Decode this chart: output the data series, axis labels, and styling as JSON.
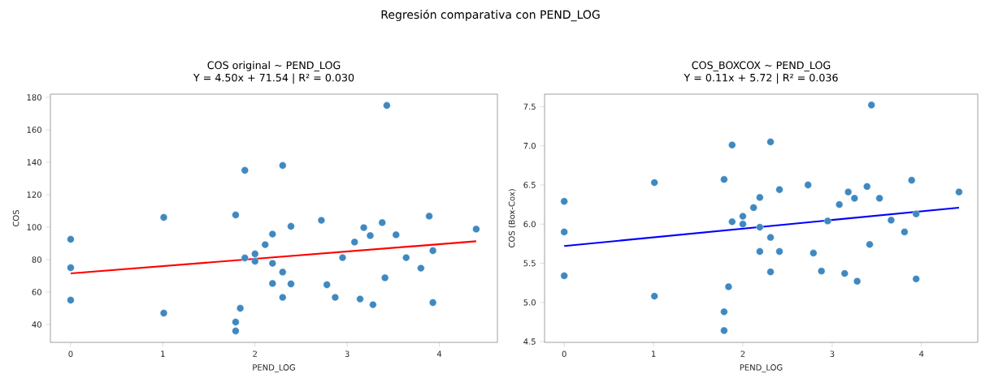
{
  "chart_data": [
    {
      "type": "scatter",
      "title": "COS original ~ PEND_LOG",
      "subtitle": "Y = 4.50x + 71.54 | R² = 0.030",
      "xlabel": "PEND_LOG",
      "ylabel": "COS",
      "annotations": [
        "Regresión comparativa con PEND_LOG"
      ],
      "xlim": [
        -0.22,
        4.63
      ],
      "ylim": [
        29,
        182
      ],
      "xticks": [
        0,
        1,
        2,
        3,
        4
      ],
      "yticks": [
        40,
        60,
        80,
        100,
        120,
        140,
        160,
        180
      ],
      "marker": "circle",
      "series": [
        {
          "color": "#3f88c0",
          "x": [
            0,
            0,
            0,
            1.01,
            1.01,
            1.79,
            1.79,
            1.79,
            1.84,
            1.89,
            1.89,
            2.0,
            2.0,
            3.43,
            2.3,
            2.72,
            2.39,
            2.19,
            2.11,
            2.19,
            2.3,
            2.19,
            2.39,
            2.3,
            2.78,
            2.87,
            2.95,
            3.08,
            3.18,
            3.25,
            3.38,
            3.53,
            3.14,
            3.28,
            3.41,
            3.64,
            3.8,
            3.89,
            3.93,
            3.93,
            4.4
          ],
          "values": [
            92.5,
            75,
            55,
            106,
            47,
            107.5,
            41.5,
            36,
            50,
            135,
            81,
            83.5,
            79,
            175,
            138,
            104.2,
            100.5,
            95.7,
            89.2,
            77.7,
            72.3,
            65.3,
            65,
            56.7,
            64.5,
            56.7,
            81.2,
            90.8,
            99.7,
            94.8,
            102.8,
            95.3,
            55.7,
            52.2,
            68.8,
            81.2,
            74.7,
            106.8,
            85.5,
            53.5,
            98.8
          ]
        },
        {
          "type": "line",
          "marker": "none",
          "color": "#ff0000",
          "x": [
            0,
            4.4
          ],
          "values": [
            71.5,
            91.3
          ]
        }
      ]
    },
    {
      "type": "scatter",
      "title": "COS_BOXCOX ~ PEND_LOG",
      "subtitle": "Y = 0.11x + 5.72 | R² = 0.036",
      "xlabel": "PEND_LOG",
      "ylabel": "COS (Box-Cox)",
      "xlim": [
        -0.22,
        4.63
      ],
      "ylim": [
        4.49,
        7.66
      ],
      "xticks": [
        0,
        1,
        2,
        3,
        4
      ],
      "yticks": [
        4.5,
        {
          "value": 5,
          "label": "5.0"
        },
        5.5,
        {
          "value": 6,
          "label": "6.0"
        },
        6.5,
        {
          "value": 7,
          "label": "7.0"
        },
        7.5
      ],
      "marker": "circle",
      "series": [
        {
          "color": "#3f88c0",
          "x": [
            0,
            0,
            0,
            1.01,
            1.01,
            1.79,
            1.79,
            1.79,
            1.84,
            1.88,
            1.88,
            2.0,
            2.0,
            2.31,
            3.44,
            2.73,
            2.41,
            2.19,
            2.12,
            2.19,
            2.31,
            2.19,
            2.41,
            2.31,
            2.79,
            2.88,
            2.95,
            3.08,
            3.18,
            3.25,
            3.39,
            3.53,
            3.14,
            3.28,
            3.42,
            3.66,
            3.81,
            3.89,
            3.94,
            3.94,
            4.42
          ],
          "values": [
            6.29,
            5.9,
            5.34,
            6.53,
            5.08,
            6.57,
            4.88,
            4.64,
            5.2,
            7.01,
            6.03,
            6.1,
            6.0,
            7.05,
            7.52,
            6.5,
            6.44,
            6.34,
            6.21,
            5.96,
            5.83,
            5.65,
            5.65,
            5.39,
            5.63,
            5.4,
            6.04,
            6.25,
            6.41,
            6.33,
            6.48,
            6.33,
            5.37,
            5.27,
            5.74,
            6.05,
            5.9,
            6.56,
            6.13,
            5.3,
            6.41
          ]
        },
        {
          "type": "line",
          "marker": "none",
          "color": "#0000ff",
          "x": [
            0,
            4.42
          ],
          "values": [
            5.72,
            6.21
          ]
        }
      ]
    }
  ]
}
